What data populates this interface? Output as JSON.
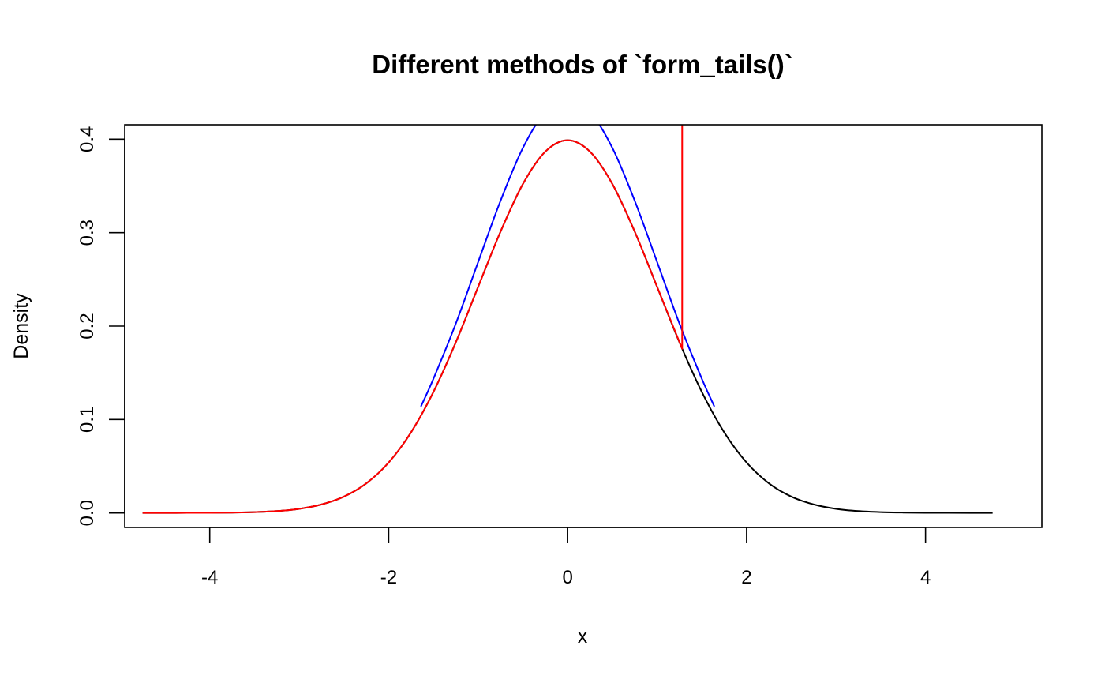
{
  "chart_data": {
    "type": "line",
    "title": "Different methods of `form_tails()`",
    "xlabel": "x",
    "ylabel": "Density",
    "xlim": [
      -4.95,
      5.3
    ],
    "ylim": [
      -0.0155,
      0.4155
    ],
    "xticks": [
      -4,
      -2,
      0,
      2,
      4
    ],
    "yticks": [
      0.0,
      0.1,
      0.2,
      0.3,
      0.4
    ],
    "xtick_labels": [
      "-4",
      "-2",
      "0",
      "2",
      "4"
    ],
    "ytick_labels": [
      "0.0",
      "0.1",
      "0.2",
      "0.3",
      "0.4"
    ],
    "grid": false,
    "legend": "none",
    "series": [
      {
        "color": "#000000",
        "x": [
          -4.75,
          -4.5,
          -4.25,
          -4.0,
          -3.75,
          -3.5,
          -3.25,
          -3.0,
          -2.75,
          -2.5,
          -2.25,
          -2.0,
          -1.75,
          -1.5,
          -1.25,
          -1.0,
          -0.75,
          -0.5,
          -0.25,
          0.0,
          0.25,
          0.5,
          0.75,
          1.0,
          1.25,
          1.5,
          1.75,
          2.0,
          2.25,
          2.5,
          2.75,
          3.0,
          3.25,
          3.5,
          3.75,
          4.0,
          4.25,
          4.5,
          4.75
        ],
        "y": [
          0.0,
          0.0,
          0.0001,
          0.0001,
          0.0004,
          0.0009,
          0.002,
          0.0044,
          0.0091,
          0.0175,
          0.0317,
          0.054,
          0.0863,
          0.1295,
          0.1826,
          0.242,
          0.3011,
          0.3521,
          0.3867,
          0.3989,
          0.3867,
          0.3521,
          0.3011,
          0.242,
          0.1826,
          0.1295,
          0.0863,
          0.054,
          0.0317,
          0.0175,
          0.0091,
          0.0044,
          0.002,
          0.0009,
          0.0004,
          0.0001,
          0.0001,
          0.0,
          0.0
        ]
      },
      {
        "color": "#0000ff",
        "x": [
          -1.64,
          -1.5,
          -1.25,
          -1.0,
          -0.75,
          -0.5,
          -0.25,
          0.0,
          0.25,
          0.5,
          0.75,
          1.0,
          1.25,
          1.5,
          1.64
        ],
        "y": [
          0.1139,
          0.1436,
          0.2026,
          0.2686,
          0.3341,
          0.3907,
          0.4291,
          0.4426,
          0.4291,
          0.3907,
          0.3341,
          0.2686,
          0.2026,
          0.1436,
          0.1139
        ]
      },
      {
        "color": "#ff0000",
        "x": [
          -4.75,
          -4.5,
          -4.25,
          -4.0,
          -3.75,
          -3.5,
          -3.25,
          -3.0,
          -2.75,
          -2.5,
          -2.25,
          -2.0,
          -1.75,
          -1.5,
          -1.25,
          -1.0,
          -0.75,
          -0.5,
          -0.25,
          0.0,
          0.25,
          0.5,
          0.75,
          1.0,
          1.28,
          1.28
        ],
        "y": [
          0.0,
          0.0,
          0.0001,
          0.0001,
          0.0004,
          0.0009,
          0.002,
          0.0044,
          0.0091,
          0.0175,
          0.0317,
          0.054,
          0.0863,
          0.1295,
          0.1826,
          0.242,
          0.3011,
          0.3521,
          0.3867,
          0.3989,
          0.3867,
          0.3521,
          0.3011,
          0.242,
          0.1758,
          0.5
        ]
      }
    ]
  }
}
